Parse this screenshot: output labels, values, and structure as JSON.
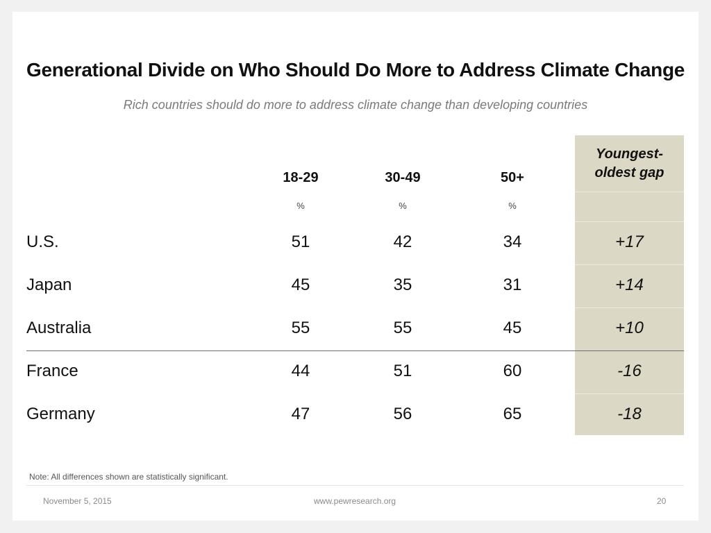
{
  "title": "Generational Divide on Who Should Do More to Address Climate Change",
  "subtitle": "Rich countries should do more to address climate change than developing countries",
  "columns": [
    {
      "label": "18-29",
      "unit": "%"
    },
    {
      "label": "30-49",
      "unit": "%"
    },
    {
      "label": "50+",
      "unit": "%"
    }
  ],
  "gap_header": {
    "line1": "Youngest-",
    "line2": "oldest gap"
  },
  "rows": [
    {
      "country": "U.S.",
      "values": [
        "51",
        "42",
        "34"
      ],
      "gap": "+17"
    },
    {
      "country": "Japan",
      "values": [
        "45",
        "35",
        "31"
      ],
      "gap": "+14"
    },
    {
      "country": "Australia",
      "values": [
        "55",
        "55",
        "45"
      ],
      "gap": "+10"
    },
    {
      "country": "France",
      "values": [
        "44",
        "51",
        "60"
      ],
      "gap": "-16"
    },
    {
      "country": "Germany",
      "values": [
        "47",
        "56",
        "65"
      ],
      "gap": "-18"
    }
  ],
  "note": "Note: All differences shown are statistically significant.",
  "footer": {
    "date": "November 5, 2015",
    "url": "www.pewresearch.org",
    "page": "20"
  },
  "colors": {
    "gap_column_bg": "#dcd8c6",
    "text": "#111111",
    "subtitle": "#7a7a7a"
  }
}
